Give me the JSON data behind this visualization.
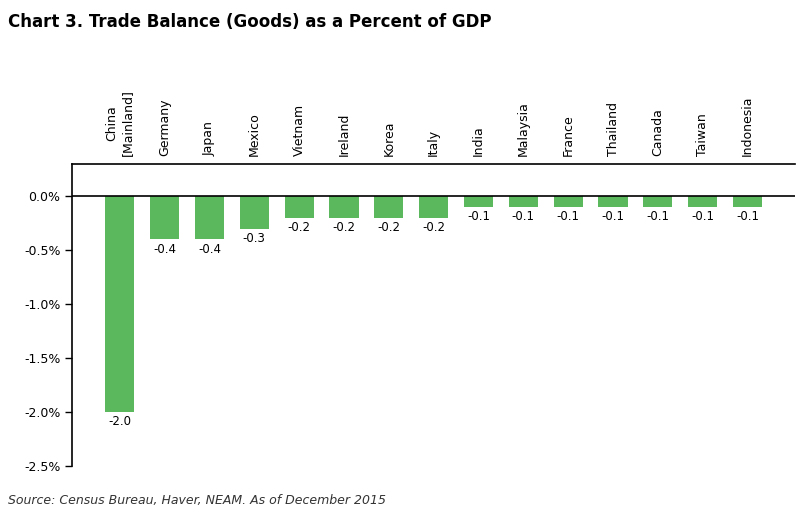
{
  "title": "Chart 3. Trade Balance (Goods) as a Percent of GDP",
  "categories": [
    "China\n[Mainland]",
    "Germany",
    "Japan",
    "Mexico",
    "Vietnam",
    "Ireland",
    "Korea",
    "Italy",
    "India",
    "Malaysia",
    "France",
    "Thailand",
    "Canada",
    "Taiwan",
    "Indonesia"
  ],
  "values": [
    -2.0,
    -0.4,
    -0.4,
    -0.3,
    -0.2,
    -0.2,
    -0.2,
    -0.2,
    -0.1,
    -0.1,
    -0.1,
    -0.1,
    -0.1,
    -0.1,
    -0.1
  ],
  "bar_color": "#5cb85c",
  "ylim": [
    -2.5,
    0.3
  ],
  "yticks": [
    0.0,
    -0.5,
    -1.0,
    -1.5,
    -2.0,
    -2.5
  ],
  "ytick_labels": [
    "0.0%",
    "-0.5%",
    "-1.0%",
    "-1.5%",
    "-2.0%",
    "-2.5%"
  ],
  "bar_labels": [
    "-2.0",
    "-0.4",
    "-0.4",
    "-0.3",
    "-0.2",
    "-0.2",
    "-0.2",
    "-0.2",
    "-0.1",
    "-0.1",
    "-0.1",
    "-0.1",
    "-0.1",
    "-0.1",
    "-0.1"
  ],
  "source_text": "Source: Census Bureau, Haver, NEAM. As of December 2015",
  "background_color": "#ffffff",
  "title_fontsize": 12,
  "label_fontsize": 8.5,
  "tick_fontsize": 9,
  "source_fontsize": 9
}
